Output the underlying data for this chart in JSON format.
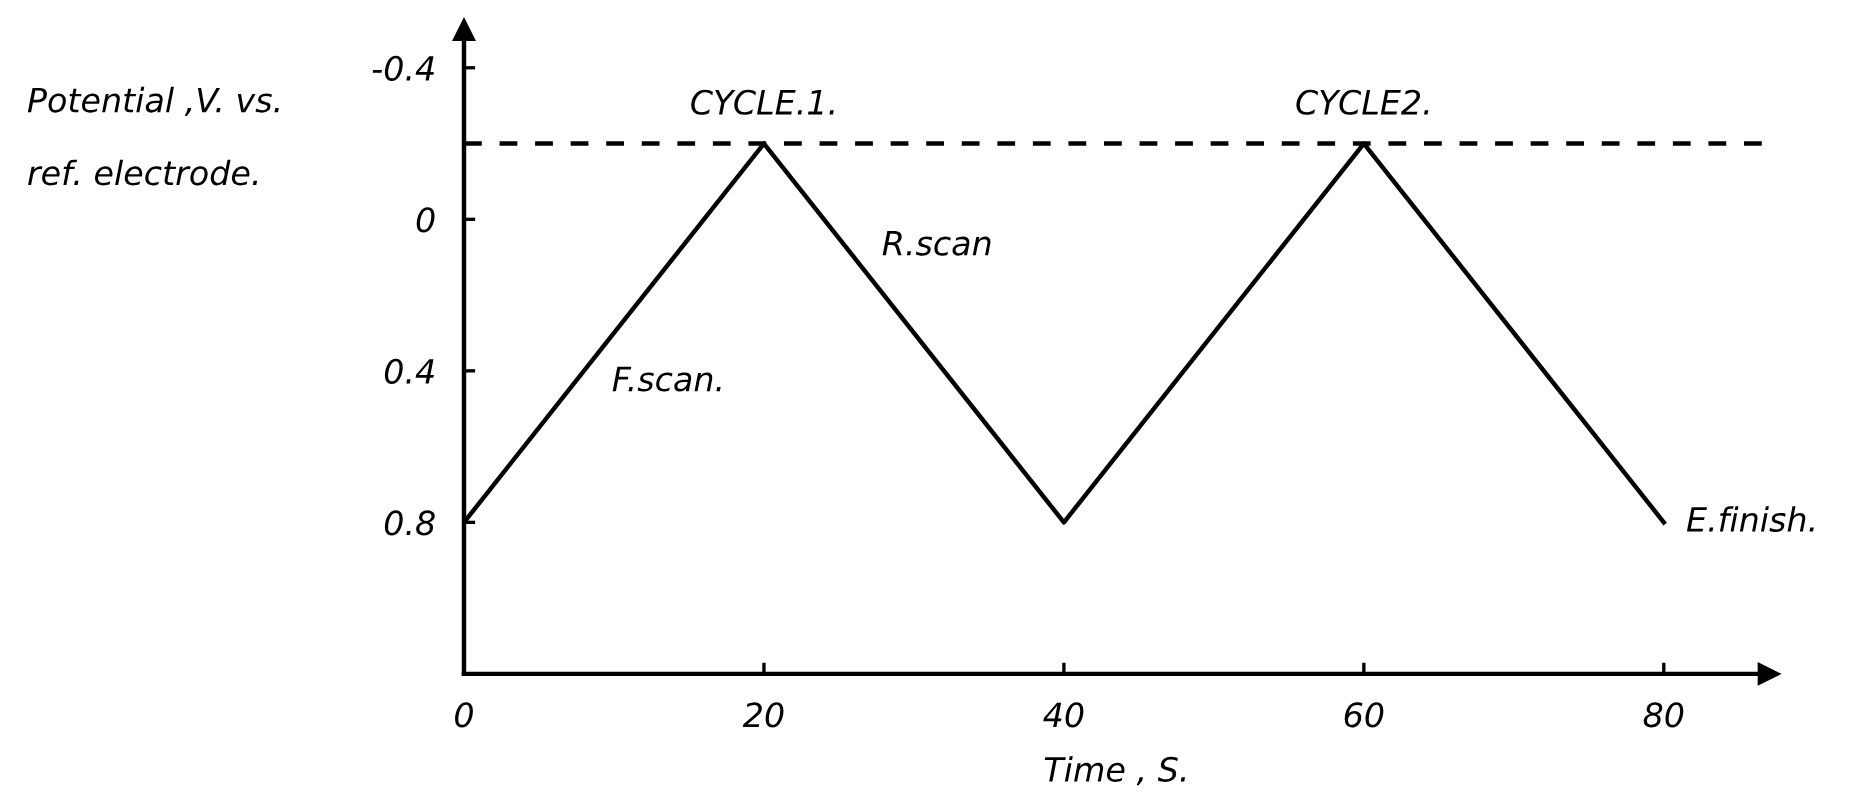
{
  "chart_data": {
    "type": "line",
    "xlabel": "Time , S.",
    "ylabel": "Potential ,V. vs.\nref. electrode.",
    "x": [
      0,
      20,
      40,
      60,
      80
    ],
    "series": [
      {
        "color": "#000000",
        "values": [
          0.8,
          -0.2,
          0.8,
          -0.2,
          0.8
        ]
      }
    ],
    "xlim": [
      0,
      87
    ],
    "xticks": [
      0,
      20,
      40,
      60,
      80
    ],
    "ylim": [
      1.2,
      -0.5
    ],
    "yticks": [
      -0.4,
      0,
      0.4,
      0.8
    ],
    "ref_lines": [
      {
        "axis": "y",
        "value": -0.2,
        "color": "#000000",
        "line_style": "dashed"
      }
    ],
    "annotations": [
      {
        "text": "CYCLE.1.",
        "x": 20,
        "y": -0.2
      },
      {
        "text": "F.scan.",
        "x": 8,
        "y": 0.4
      },
      {
        "text": "R.scan",
        "x": 26,
        "y": 0.1
      },
      {
        "text": "CYCLE2.",
        "x": 60,
        "y": -0.2
      },
      {
        "text": "E.finish.",
        "x": 80,
        "y": 0.8
      }
    ],
    "grid": false,
    "legend": false,
    "marker": "none",
    "line_style": "solid"
  }
}
